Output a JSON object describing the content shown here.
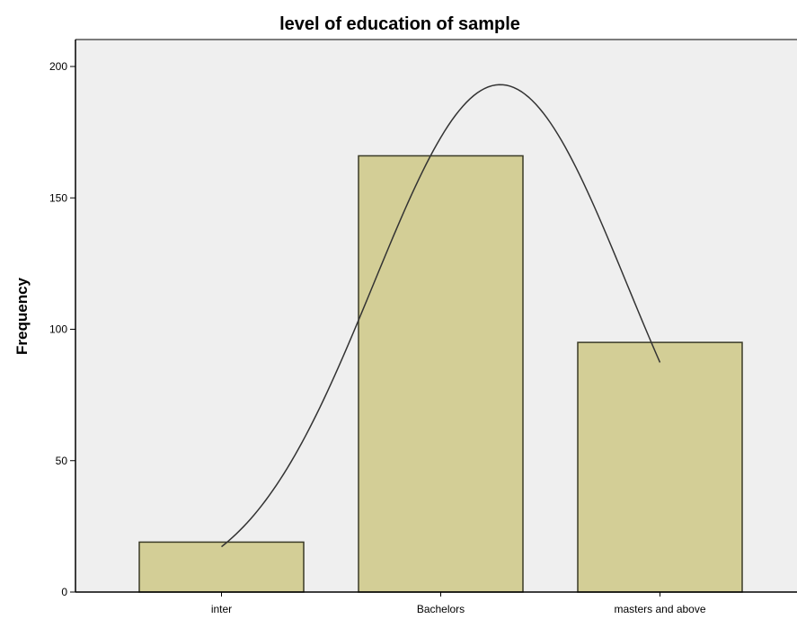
{
  "chart_data": {
    "type": "bar",
    "title": "level of education of sample",
    "xlabel": "",
    "ylabel": "Frequency",
    "categories": [
      "inter",
      "Bachelors",
      "masters and above"
    ],
    "values": [
      19,
      166,
      95
    ],
    "ylim": [
      0,
      210
    ],
    "yticks": [
      0,
      50,
      100,
      150,
      200
    ],
    "grid": false,
    "legend": "none",
    "overlay_curve": "normal",
    "colors": {
      "plot_background": "#efefef",
      "bar_fill": "#d3ce96",
      "bar_stroke": "#3a3a26",
      "curve_stroke": "#333333",
      "axis": "#000000"
    }
  }
}
